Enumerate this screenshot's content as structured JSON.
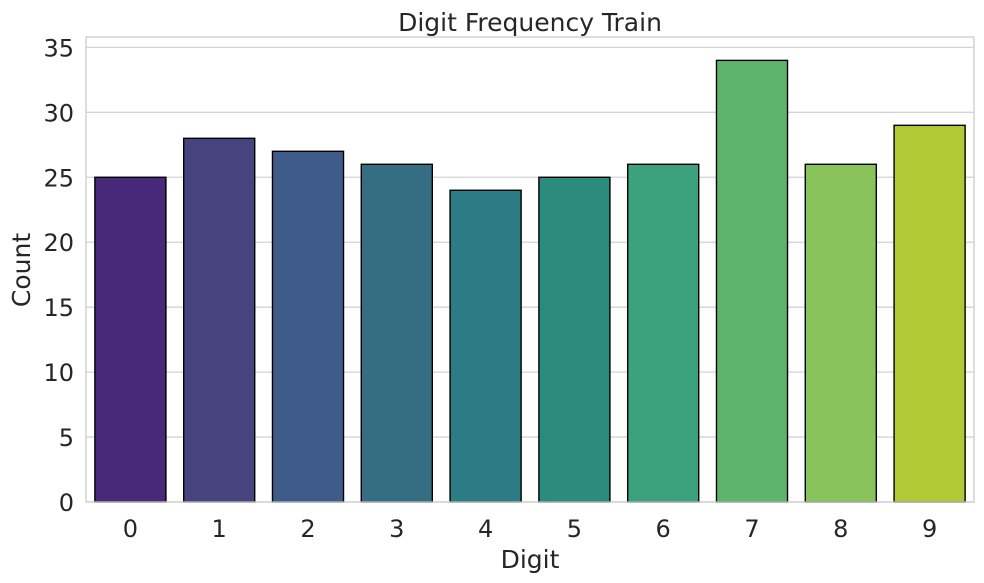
{
  "chart_data": {
    "type": "bar",
    "title": "Digit Frequency Train",
    "xlabel": "Digit",
    "ylabel": "Count",
    "categories": [
      "0",
      "1",
      "2",
      "3",
      "4",
      "5",
      "6",
      "7",
      "8",
      "9"
    ],
    "values": [
      25,
      28,
      27,
      26,
      24,
      25,
      26,
      34,
      26,
      29
    ],
    "ylim": [
      0,
      35.8
    ],
    "yticks": [
      "0",
      "5",
      "10",
      "15",
      "20",
      "25",
      "30",
      "35"
    ],
    "grid": "horizontal",
    "colors": [
      "#482878",
      "#46437e",
      "#3e5a89",
      "#356d83",
      "#2b7c85",
      "#2b8c7e",
      "#3ba27b",
      "#5db56d",
      "#89c35b",
      "#b1c934"
    ]
  }
}
